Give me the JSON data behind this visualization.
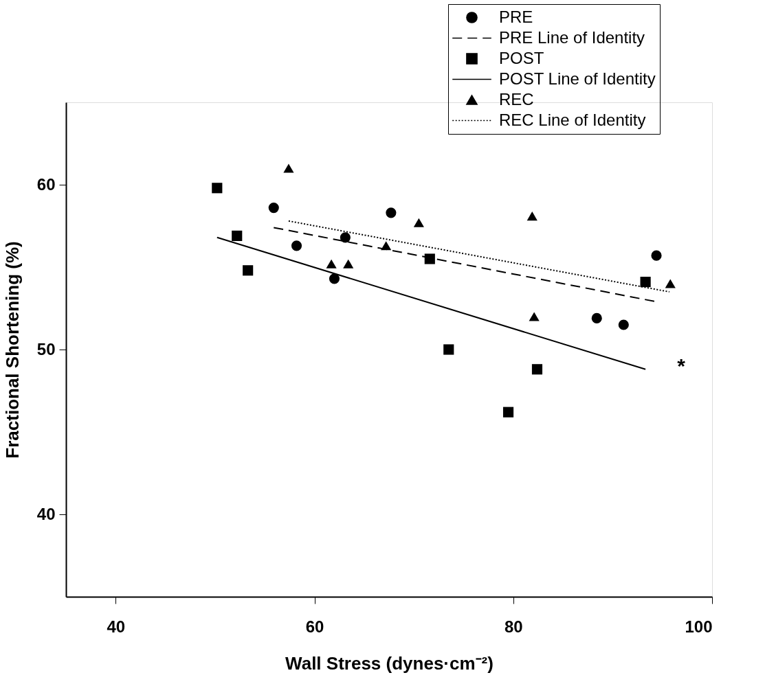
{
  "chart_data": {
    "type": "scatter",
    "xlabel": "Wall Stress (dynes·cm⁻²)",
    "ylabel": "Fractional Shortening (%)",
    "xlim": [
      35,
      100
    ],
    "ylim": [
      35,
      65
    ],
    "xticks": [
      40,
      60,
      80,
      100
    ],
    "yticks": [
      40,
      50,
      60
    ],
    "grid": false,
    "legend": "top right",
    "series": [
      {
        "name": "PRE",
        "marker": "circle",
        "color": "#000000",
        "x": [
          55.9,
          58.2,
          62.0,
          63.1,
          67.7,
          88.4,
          91.1,
          94.4
        ],
        "values": [
          58.6,
          56.3,
          54.3,
          56.8,
          58.3,
          51.9,
          51.5,
          55.7
        ]
      },
      {
        "name": "PRE Line of Identity",
        "type": "line",
        "marker": "none",
        "line_style": "dashed",
        "color": "#000000",
        "x": [
          55.9,
          94.4
        ],
        "values": [
          57.4,
          52.9
        ]
      },
      {
        "name": "POST",
        "marker": "square",
        "color": "#000000",
        "x": [
          50.2,
          52.2,
          53.3,
          71.6,
          73.5,
          79.5,
          82.4,
          93.3
        ],
        "values": [
          59.8,
          56.9,
          54.8,
          55.5,
          50.0,
          46.2,
          48.8,
          54.1
        ]
      },
      {
        "name": "POST Line of Identity",
        "type": "line",
        "marker": "none",
        "line_style": "solid",
        "color": "#000000",
        "x": [
          50.2,
          93.3
        ],
        "values": [
          56.8,
          48.8
        ]
      },
      {
        "name": "REC",
        "marker": "triangle",
        "color": "#000000",
        "x": [
          57.4,
          61.7,
          63.4,
          67.2,
          70.5,
          81.9,
          82.1,
          95.8
        ],
        "values": [
          61.0,
          55.2,
          55.2,
          56.3,
          57.7,
          58.1,
          52.0,
          54.0
        ]
      },
      {
        "name": "REC Line of Identity",
        "type": "line",
        "marker": "none",
        "line_style": "dotted",
        "color": "#000000",
        "x": [
          57.4,
          95.7
        ],
        "values": [
          57.8,
          53.5
        ]
      }
    ],
    "annotations": [
      "*"
    ]
  }
}
